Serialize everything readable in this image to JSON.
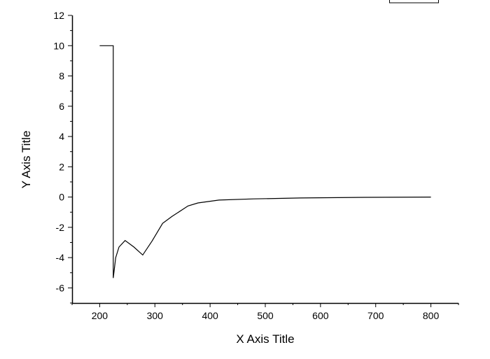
{
  "chart_data": {
    "type": "line",
    "title": "",
    "xlabel": "X Axis Title",
    "ylabel": "Y Axis Title",
    "xlim": [
      150,
      850
    ],
    "ylim": [
      -7,
      12
    ],
    "xticks": [
      200,
      300,
      400,
      500,
      600,
      700,
      800
    ],
    "yticks": [
      -6,
      -4,
      -2,
      0,
      2,
      4,
      6,
      8,
      10,
      12
    ],
    "grid": false,
    "legend": {
      "placement": "top-right",
      "entries": []
    },
    "line_color": "#000000",
    "series": [
      {
        "x": [
          200,
          224.6,
          224.6,
          229,
          235,
          246,
          262,
          278,
          295,
          314,
          331,
          360,
          378,
          416,
          479,
          564,
          680,
          800
        ],
        "y": [
          10,
          10,
          -5.35,
          -4.0,
          -3.3,
          -2.87,
          -3.3,
          -3.83,
          -2.9,
          -1.74,
          -1.28,
          -0.59,
          -0.39,
          -0.2,
          -0.12,
          -0.06,
          -0.02,
          0
        ]
      }
    ]
  }
}
